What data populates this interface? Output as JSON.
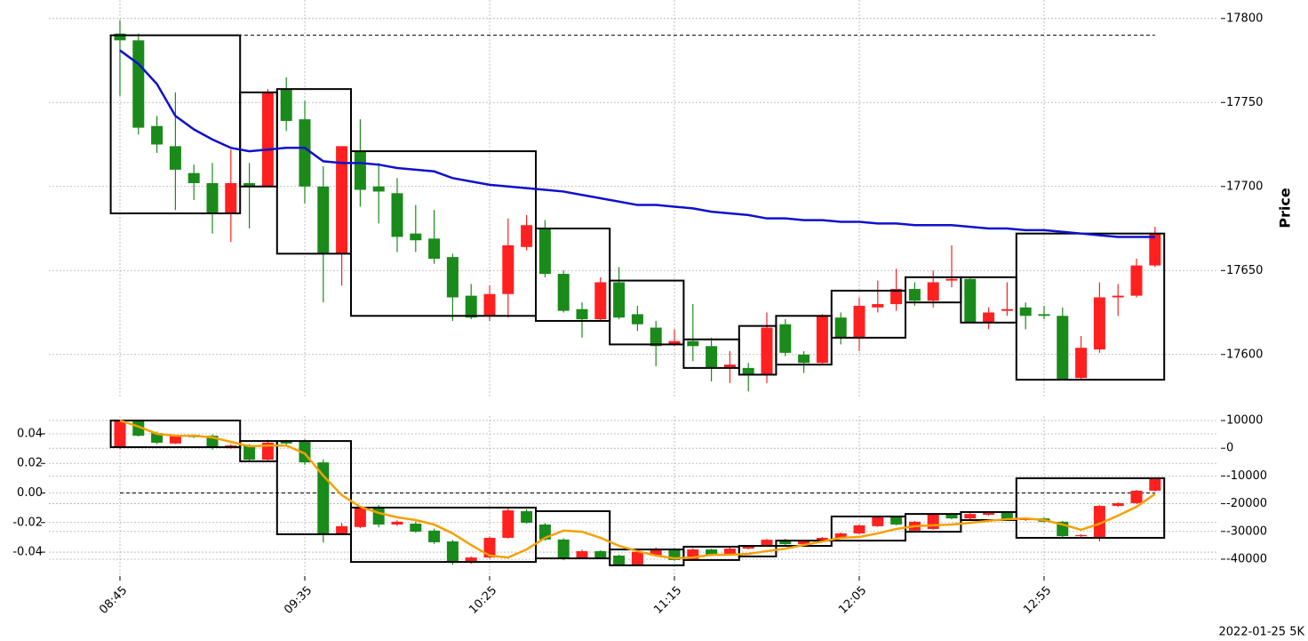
{
  "chart_data": [
    {
      "type": "candlestick",
      "ylabel": "Price",
      "yaxis_position": "right",
      "grid": true,
      "ylim": [
        17575,
        17811
      ],
      "yticks": [
        17600,
        17650,
        17700,
        17750,
        17800
      ],
      "up_color": "#ff2020",
      "down_color": "#1a8a1a",
      "candles": {
        "open": [
          17791,
          17787,
          17736,
          17724,
          17708,
          17702,
          17684,
          17702,
          17700,
          17758,
          17740,
          17700,
          17660,
          17721,
          17700,
          17696,
          17672,
          17669,
          17658,
          17635,
          17623,
          17636,
          17664,
          17675,
          17648,
          17627,
          17621,
          17643,
          17624,
          17616,
          17606,
          17608,
          17605,
          17592,
          17592,
          17588,
          17618,
          17600,
          17595,
          17622,
          17610,
          17628,
          17630,
          17639,
          17632,
          17644,
          17645,
          17619,
          17626,
          17628,
          17624,
          17623,
          17586,
          17603,
          17634,
          17635,
          17653
        ],
        "high": [
          17799,
          17791,
          17742,
          17756,
          17713,
          17714,
          17722,
          17714,
          17758,
          17765,
          17751,
          17712,
          17724,
          17740,
          17714,
          17705,
          17689,
          17686,
          17660,
          17642,
          17641,
          17681,
          17683,
          17680,
          17650,
          17631,
          17646,
          17652,
          17629,
          17620,
          17615,
          17630,
          17610,
          17602,
          17595,
          17625,
          17621,
          17602,
          17624,
          17625,
          17634,
          17644,
          17651,
          17643,
          17650,
          17665,
          17646,
          17628,
          17643,
          17631,
          17629,
          17628,
          17611,
          17643,
          17642,
          17657,
          17676
        ],
        "low": [
          17754,
          17731,
          17720,
          17686,
          17692,
          17672,
          17667,
          17675,
          17700,
          17733,
          17690,
          17631,
          17641,
          17688,
          17678,
          17661,
          17661,
          17654,
          17620,
          17621,
          17620,
          17622,
          17662,
          17646,
          17625,
          17610,
          17620,
          17621,
          17614,
          17593,
          17605,
          17596,
          17584,
          17583,
          17578,
          17583,
          17599,
          17589,
          17594,
          17606,
          17602,
          17625,
          17626,
          17629,
          17628,
          17640,
          17619,
          17615,
          17623,
          17615,
          17621,
          17585,
          17585,
          17601,
          17623,
          17634,
          17652
        ],
        "close": [
          17787,
          17735,
          17725,
          17710,
          17702,
          17684,
          17702,
          17700,
          17756,
          17739,
          17700,
          17660,
          17724,
          17698,
          17697,
          17670,
          17668,
          17657,
          17634,
          17622,
          17636,
          17665,
          17677,
          17648,
          17626,
          17621,
          17643,
          17622,
          17618,
          17605,
          17608,
          17605,
          17592,
          17594,
          17588,
          17616,
          17601,
          17595,
          17623,
          17610,
          17629,
          17630,
          17639,
          17632,
          17643,
          17645,
          17619,
          17625,
          17627,
          17623,
          17623,
          17585,
          17604,
          17634,
          17635,
          17653,
          17672
        ]
      },
      "line": {
        "color": "#1010cc",
        "values": [
          17781,
          17773,
          17761,
          17742,
          17734,
          17728,
          17723,
          17721,
          17722,
          17723,
          17723,
          17715,
          17714,
          17714,
          17713,
          17711,
          17710,
          17709,
          17705,
          17703,
          17701,
          17700,
          17699,
          17698,
          17697,
          17695,
          17693,
          17691,
          17689,
          17689,
          17688,
          17687,
          17685,
          17684,
          17683,
          17681,
          17681,
          17680,
          17680,
          17679,
          17679,
          17678,
          17678,
          17677,
          17677,
          17677,
          17676,
          17675,
          17675,
          17674,
          17674,
          17673,
          17672,
          17671,
          17670,
          17670,
          17670
        ]
      },
      "hline": 17790,
      "boxes": [
        {
          "x0": -0.5,
          "x1": 6.5,
          "top": 17790,
          "bottom": 17684
        },
        {
          "x0": 6.5,
          "x1": 8.5,
          "top": 17756,
          "bottom": 17700
        },
        {
          "x0": 8.5,
          "x1": 12.5,
          "top": 17758,
          "bottom": 17660
        },
        {
          "x0": 12.5,
          "x1": 22.5,
          "top": 17721,
          "bottom": 17623
        },
        {
          "x0": 22.5,
          "x1": 26.5,
          "top": 17675,
          "bottom": 17620
        },
        {
          "x0": 26.5,
          "x1": 30.5,
          "top": 17644,
          "bottom": 17606
        },
        {
          "x0": 30.5,
          "x1": 33.5,
          "top": 17609,
          "bottom": 17592
        },
        {
          "x0": 33.5,
          "x1": 35.5,
          "top": 17617,
          "bottom": 17588
        },
        {
          "x0": 35.5,
          "x1": 38.5,
          "top": 17623,
          "bottom": 17594
        },
        {
          "x0": 38.5,
          "x1": 42.5,
          "top": 17638,
          "bottom": 17610
        },
        {
          "x0": 42.5,
          "x1": 45.5,
          "top": 17646,
          "bottom": 17631
        },
        {
          "x0": 45.5,
          "x1": 48.5,
          "top": 17646,
          "bottom": 17619
        },
        {
          "x0": 48.5,
          "x1": 56.5,
          "top": 17672,
          "bottom": 17585
        }
      ]
    },
    {
      "type": "candlestick",
      "yaxis_position": "left",
      "grid": true,
      "ylim": [
        -0.0562,
        0.052
      ],
      "yticks": [
        -0.04,
        -0.02,
        {
          "value": 0,
          "label": "0.00"
        },
        0.02,
        0.04
      ],
      "y2lim": [
        -46100,
        11600
      ],
      "y2ticks": [
        -40000,
        -30000,
        -20000,
        -10000,
        0,
        10000
      ],
      "up_color": "#ff2020",
      "down_color": "#1a8a1a",
      "categories": [
        "08:45",
        null,
        null,
        null,
        null,
        null,
        null,
        null,
        null,
        null,
        "09:35",
        null,
        null,
        null,
        null,
        null,
        null,
        null,
        null,
        null,
        "10:25",
        null,
        null,
        null,
        null,
        null,
        null,
        null,
        null,
        null,
        "11:15",
        null,
        null,
        null,
        null,
        null,
        null,
        null,
        null,
        null,
        "12:05",
        null,
        null,
        null,
        null,
        null,
        null,
        null,
        null,
        null,
        "12:55",
        null,
        null,
        null,
        null,
        null,
        null
      ],
      "candles": {
        "axis": "y2",
        "open": [
          400,
          9700,
          5500,
          1700,
          4800,
          4500,
          0,
          1000,
          -4100,
          2600,
          2300,
          -5100,
          -30700,
          -28400,
          -21400,
          -27500,
          -27200,
          -29700,
          -33600,
          -41300,
          -39400,
          -32300,
          -22700,
          -27500,
          -32900,
          -39400,
          -37100,
          -38700,
          -41900,
          -38700,
          -36200,
          -40300,
          -36500,
          -38400,
          -36200,
          -35200,
          -33000,
          -34600,
          -33300,
          -32300,
          -30700,
          -28100,
          -24600,
          -29700,
          -29100,
          -23700,
          -25300,
          -24000,
          -23000,
          -25900,
          -25300,
          -26500,
          -31700,
          -32300,
          -20800,
          -19800,
          -15300
        ],
        "high": [
          10000,
          10000,
          6000,
          4800,
          5000,
          5000,
          1500,
          1500,
          3000,
          3000,
          3200,
          -4000,
          -27000,
          -21000,
          -20500,
          -26000,
          -26500,
          -29000,
          -33000,
          -39000,
          -31800,
          -21700,
          -22000,
          -27000,
          -32500,
          -36600,
          -36800,
          -38400,
          -37000,
          -35800,
          -35900,
          -36000,
          -36200,
          -35800,
          -34900,
          -32700,
          -32600,
          -33000,
          -32000,
          -30400,
          -27500,
          -24600,
          -24300,
          -26200,
          -23400,
          -23400,
          -23400,
          -22700,
          -22700,
          -25000,
          -25000,
          -26200,
          -31000,
          -20500,
          -19500,
          -15000,
          -10500
        ],
        "low": [
          -300,
          4200,
          1500,
          1500,
          3700,
          -500,
          -200,
          -4500,
          -4500,
          1300,
          -6000,
          -34000,
          -31000,
          -28800,
          -28500,
          -28000,
          -30500,
          -34500,
          -42000,
          -41600,
          -39800,
          -32600,
          -27200,
          -33300,
          -40400,
          -39800,
          -39700,
          -42300,
          -42200,
          -39000,
          -40600,
          -40600,
          -38700,
          -38600,
          -36500,
          -35500,
          -34900,
          -34900,
          -33600,
          -32600,
          -31000,
          -28400,
          -27800,
          -30100,
          -29400,
          -25600,
          -25600,
          -24300,
          -26200,
          -26200,
          -26800,
          -32000,
          -32000,
          -33600,
          -21100,
          -20100,
          -15600
        ],
        "close": [
          9700,
          4500,
          2000,
          4500,
          4000,
          400,
          1000,
          -4100,
          2000,
          1700,
          -5100,
          -30700,
          -28100,
          -21400,
          -27500,
          -26500,
          -30100,
          -33900,
          -41300,
          -39400,
          -32300,
          -22400,
          -26900,
          -32900,
          -39700,
          -37100,
          -39400,
          -41900,
          -37400,
          -36200,
          -40300,
          -36500,
          -38400,
          -36200,
          -35200,
          -33000,
          -34600,
          -33300,
          -32300,
          -30700,
          -27800,
          -24900,
          -27500,
          -26500,
          -23700,
          -25300,
          -23700,
          -23000,
          -25900,
          -25300,
          -26500,
          -31700,
          -31300,
          -20800,
          -19800,
          -15300,
          -10800
        ]
      },
      "line": {
        "axis": "y2",
        "color": "#f5a000",
        "values": [
          10000,
          7800,
          5200,
          4500,
          4500,
          3900,
          2300,
          700,
          1000,
          1000,
          -1900,
          -9900,
          -16900,
          -21100,
          -23300,
          -24900,
          -25900,
          -27500,
          -30700,
          -34900,
          -38700,
          -39400,
          -36500,
          -32300,
          -29700,
          -30100,
          -32300,
          -35200,
          -37100,
          -38700,
          -39700,
          -39400,
          -38400,
          -38400,
          -38100,
          -37100,
          -36200,
          -34900,
          -33600,
          -32300,
          -32000,
          -30700,
          -29100,
          -28100,
          -27800,
          -27500,
          -26900,
          -26200,
          -25600,
          -25300,
          -25900,
          -27500,
          -29400,
          -27200,
          -24300,
          -21100,
          -16500
        ]
      },
      "hline": 0,
      "boxes": [
        {
          "x0": -0.5,
          "x1": 6.5,
          "top": 10000,
          "bottom": 400
        },
        {
          "x0": 6.5,
          "x1": 8.5,
          "top": 2600,
          "bottom": -4700
        },
        {
          "x0": 8.5,
          "x1": 12.5,
          "top": 2600,
          "bottom": -31000
        },
        {
          "x0": 12.5,
          "x1": 22.5,
          "top": -21400,
          "bottom": -41000
        },
        {
          "x0": 22.5,
          "x1": 26.5,
          "top": -22700,
          "bottom": -39700
        },
        {
          "x0": 26.5,
          "x1": 30.5,
          "top": -36500,
          "bottom": -42200
        },
        {
          "x0": 30.5,
          "x1": 33.5,
          "top": -35500,
          "bottom": -40300
        },
        {
          "x0": 33.5,
          "x1": 35.5,
          "top": -35200,
          "bottom": -39000
        },
        {
          "x0": 35.5,
          "x1": 38.5,
          "top": -33300,
          "bottom": -35200
        },
        {
          "x0": 38.5,
          "x1": 42.5,
          "top": -24600,
          "bottom": -33300
        },
        {
          "x0": 42.5,
          "x1": 45.5,
          "top": -23700,
          "bottom": -30100
        },
        {
          "x0": 45.5,
          "x1": 48.5,
          "top": -23000,
          "bottom": -25900
        },
        {
          "x0": 48.5,
          "x1": 56.5,
          "top": -10800,
          "bottom": -32300
        }
      ]
    }
  ],
  "footer": "2022-01-25 5K"
}
